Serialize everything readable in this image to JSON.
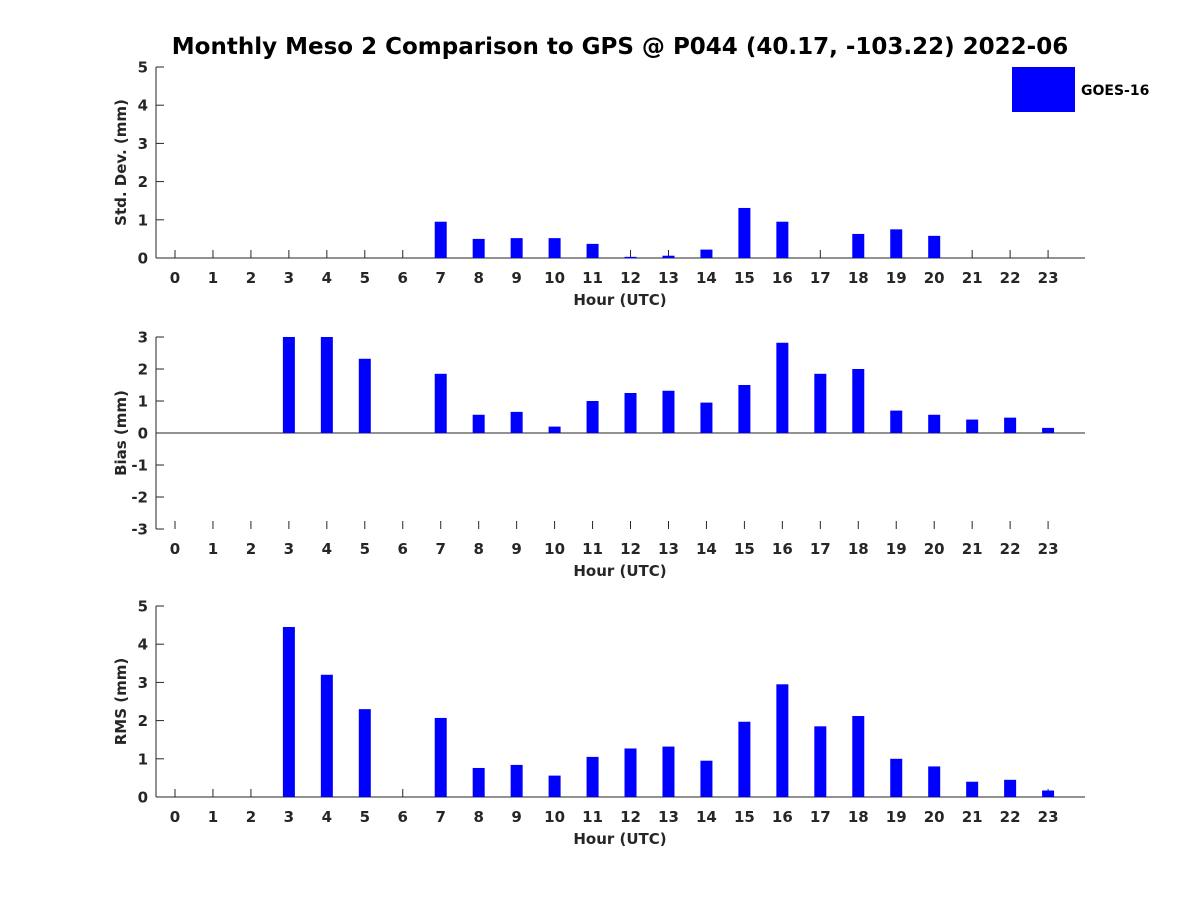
{
  "title": "Monthly Meso 2 Comparison to GPS @ P044 (40.17, -103.22) 2022-06",
  "series_color": "#0000ff",
  "legend": {
    "label": "GOES-16",
    "placement": "top-right"
  },
  "chart_data": [
    {
      "type": "bar",
      "panel": "std-dev",
      "title": "Monthly Meso 2 Comparison to GPS @ P044 (40.17, -103.22) 2022-06",
      "xlabel": "Hour (UTC)",
      "ylabel": "Std. Dev. (mm)",
      "ylim": [
        0,
        5
      ],
      "yticks": [
        "0",
        "1",
        "2",
        "3",
        "4",
        "5"
      ],
      "categories": [
        "0",
        "1",
        "2",
        "3",
        "4",
        "5",
        "6",
        "7",
        "8",
        "9",
        "10",
        "11",
        "12",
        "13",
        "14",
        "15",
        "16",
        "17",
        "18",
        "19",
        "20",
        "21",
        "22",
        "23"
      ],
      "series": [
        {
          "name": "GOES-16",
          "values": [
            0,
            0,
            0,
            0,
            0,
            0,
            0,
            0.95,
            0.5,
            0.52,
            0.52,
            0.37,
            0.03,
            0.06,
            0.22,
            1.31,
            0.95,
            0,
            0.63,
            0.75,
            0.58,
            0,
            0,
            0
          ]
        }
      ]
    },
    {
      "type": "bar",
      "panel": "bias",
      "xlabel": "Hour (UTC)",
      "ylabel": "Bias (mm)",
      "ylim": [
        -3,
        3
      ],
      "yticks": [
        "-3",
        "-2",
        "-1",
        "0",
        "1",
        "2",
        "3"
      ],
      "categories": [
        "0",
        "1",
        "2",
        "3",
        "4",
        "5",
        "6",
        "7",
        "8",
        "9",
        "10",
        "11",
        "12",
        "13",
        "14",
        "15",
        "16",
        "17",
        "18",
        "19",
        "20",
        "21",
        "22",
        "23"
      ],
      "series": [
        {
          "name": "GOES-16",
          "values": [
            0,
            0,
            0,
            3.0,
            3.0,
            2.32,
            0,
            1.85,
            0.57,
            0.66,
            0.2,
            1.0,
            1.25,
            1.32,
            0.95,
            1.5,
            2.82,
            1.85,
            2.0,
            0.7,
            0.57,
            0.42,
            0.48,
            0.16
          ]
        }
      ]
    },
    {
      "type": "bar",
      "panel": "rms",
      "xlabel": "Hour (UTC)",
      "ylabel": "RMS (mm)",
      "ylim": [
        0,
        5
      ],
      "yticks": [
        "0",
        "1",
        "2",
        "3",
        "4",
        "5"
      ],
      "categories": [
        "0",
        "1",
        "2",
        "3",
        "4",
        "5",
        "6",
        "7",
        "8",
        "9",
        "10",
        "11",
        "12",
        "13",
        "14",
        "15",
        "16",
        "17",
        "18",
        "19",
        "20",
        "21",
        "22",
        "23"
      ],
      "series": [
        {
          "name": "GOES-16",
          "values": [
            0,
            0,
            0,
            4.45,
            3.2,
            2.3,
            0,
            2.07,
            0.76,
            0.84,
            0.56,
            1.05,
            1.27,
            1.32,
            0.95,
            1.97,
            2.95,
            1.85,
            2.12,
            1.0,
            0.8,
            0.4,
            0.45,
            0.17
          ]
        }
      ]
    }
  ]
}
